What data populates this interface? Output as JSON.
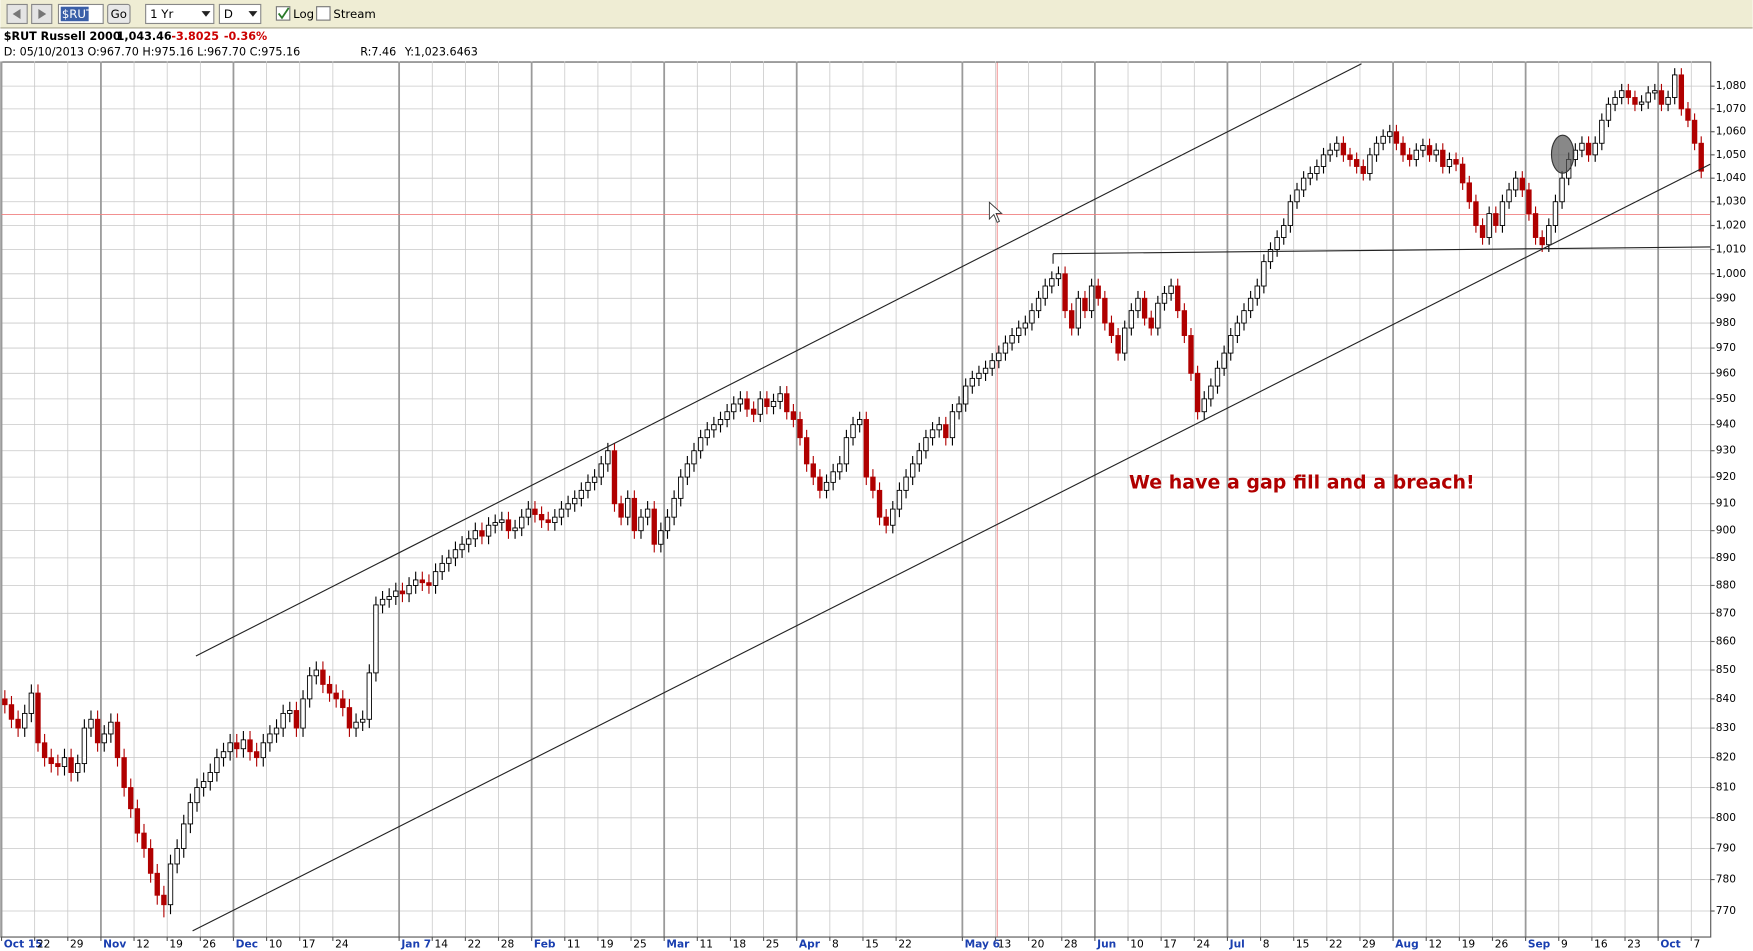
{
  "toolbar": {
    "symbol": "$RUT",
    "go": "Go",
    "period": "1 Yr",
    "frequency": "D",
    "log": "Log",
    "stream": "Stream"
  },
  "header": {
    "symbol_name": "$RUT Russell 2000",
    "last": "1,043.46",
    "change": "-3.8025",
    "change_pct": "-0.36%",
    "cursor_info": "D: 05/10/2013 O:967.70 H:975.16 L:967.70 C:975.16",
    "range": "R:7.46",
    "y_value": "Y:1,023.6463"
  },
  "chart_data": {
    "type": "candlestick",
    "log": true,
    "grid": true,
    "annotation": "We have a gap fill and a breach!",
    "up_color": "#000000",
    "down_color": "#b00000",
    "ylim": [
      762,
      1091
    ],
    "yticks": [
      770,
      780,
      790,
      800,
      810,
      820,
      830,
      840,
      850,
      860,
      870,
      880,
      890,
      900,
      910,
      920,
      930,
      940,
      950,
      960,
      970,
      980,
      990,
      {
        "value": 1000,
        "label": "1,000"
      },
      {
        "value": 1010,
        "label": "1,010"
      },
      {
        "value": 1020,
        "label": "1,020"
      },
      {
        "value": 1030,
        "label": "1,030"
      },
      {
        "value": 1040,
        "label": "1,040"
      },
      {
        "value": 1050,
        "label": "1,050"
      },
      {
        "value": 1060,
        "label": "1,060"
      },
      {
        "value": 1070,
        "label": "1,070"
      },
      {
        "value": 1080,
        "label": "1,080"
      }
    ],
    "categories": [
      "Oct 15",
      null,
      null,
      null,
      null,
      "22",
      null,
      null,
      null,
      null,
      "29",
      null,
      null,
      null,
      null,
      "Nov",
      null,
      null,
      null,
      null,
      "12",
      null,
      null,
      null,
      null,
      "19",
      null,
      null,
      null,
      null,
      "26",
      null,
      null,
      null,
      null,
      "Dec",
      null,
      null,
      null,
      null,
      "10",
      null,
      null,
      null,
      null,
      "17",
      null,
      null,
      null,
      null,
      "24",
      null,
      null,
      null,
      null,
      null,
      null,
      null,
      null,
      null,
      "Jan 7",
      null,
      null,
      null,
      null,
      "14",
      null,
      null,
      null,
      null,
      "22",
      null,
      null,
      null,
      null,
      "28",
      null,
      null,
      null,
      null,
      "Feb",
      null,
      null,
      null,
      null,
      "11",
      null,
      null,
      null,
      null,
      "19",
      null,
      null,
      null,
      null,
      "25",
      null,
      null,
      null,
      null,
      "Mar",
      null,
      null,
      null,
      null,
      "11",
      null,
      null,
      null,
      null,
      "18",
      null,
      null,
      null,
      null,
      "25",
      null,
      null,
      null,
      null,
      "Apr",
      null,
      null,
      null,
      null,
      "8",
      null,
      null,
      null,
      null,
      "15",
      null,
      null,
      null,
      null,
      "22",
      null,
      null,
      null,
      null,
      null,
      null,
      null,
      null,
      null,
      "May 6",
      null,
      null,
      null,
      null,
      "13",
      null,
      null,
      null,
      null,
      "20",
      null,
      null,
      null,
      null,
      "28",
      null,
      null,
      null,
      null,
      "Jun",
      null,
      null,
      null,
      null,
      "10",
      null,
      null,
      null,
      null,
      "17",
      null,
      null,
      null,
      null,
      "24",
      null,
      null,
      null,
      null,
      "Jul",
      null,
      null,
      null,
      null,
      "8",
      null,
      null,
      null,
      null,
      "15",
      null,
      null,
      null,
      null,
      "22",
      null,
      null,
      null,
      null,
      "29",
      null,
      null,
      null,
      null,
      "Aug",
      null,
      null,
      null,
      null,
      "12",
      null,
      null,
      null,
      null,
      "19",
      null,
      null,
      null,
      null,
      "26",
      null,
      null,
      null,
      null,
      "Sep",
      null,
      null,
      null,
      null,
      "9",
      null,
      null,
      null,
      null,
      "16",
      null,
      null,
      null,
      null,
      "23",
      null,
      null,
      null,
      null,
      "Oct",
      null,
      null,
      null,
      null,
      "7",
      null
    ],
    "open": [
      840,
      838,
      833,
      830,
      835,
      842,
      825,
      820,
      818,
      817,
      820,
      815,
      818,
      830,
      833,
      825,
      828,
      832,
      820,
      810,
      803,
      795,
      790,
      782,
      775,
      772,
      785,
      790,
      798,
      805,
      810,
      812,
      815,
      820,
      822,
      825,
      823,
      826,
      822,
      820,
      825,
      828,
      830,
      835,
      836,
      830,
      840,
      848,
      850,
      845,
      842,
      840,
      837,
      830,
      832,
      833,
      849,
      873,
      875,
      876,
      878,
      877,
      880,
      882,
      881,
      880,
      885,
      888,
      890,
      893,
      895,
      897,
      900,
      898,
      902,
      903,
      904,
      900,
      901,
      905,
      908,
      906,
      904,
      903,
      905,
      908,
      910,
      912,
      915,
      918,
      920,
      925,
      930,
      910,
      905,
      912,
      900,
      905,
      908,
      895,
      900,
      905,
      912,
      920,
      925,
      930,
      935,
      938,
      940,
      942,
      945,
      948,
      950,
      946,
      944,
      950,
      947,
      949,
      952,
      945,
      942,
      935,
      925,
      920,
      915,
      918,
      922,
      925,
      935,
      940,
      942,
      920,
      915,
      905,
      902,
      908,
      915,
      920,
      925,
      930,
      935,
      938,
      940,
      935,
      945,
      948,
      955,
      958,
      960,
      962,
      965,
      968,
      972,
      975,
      978,
      980,
      985,
      990,
      995,
      998,
      1000,
      985,
      978,
      990,
      985,
      995,
      990,
      980,
      975,
      968,
      978,
      985,
      990,
      982,
      978,
      988,
      992,
      995,
      985,
      975,
      960,
      945,
      950,
      955,
      962,
      968,
      975,
      980,
      985,
      990,
      995,
      1005,
      1010,
      1015,
      1020,
      1030,
      1035,
      1040,
      1042,
      1045,
      1050,
      1052,
      1055,
      1050,
      1048,
      1045,
      1042,
      1050,
      1055,
      1058,
      1060,
      1055,
      1050,
      1048,
      1052,
      1054,
      1050,
      1052,
      1045,
      1048,
      1046,
      1038,
      1030,
      1020,
      1015,
      1025,
      1020,
      1030,
      1035,
      1040,
      1035,
      1025,
      1015,
      1012,
      1020,
      1030,
      1040,
      1048,
      1052,
      1055,
      1050,
      1055,
      1065,
      1072,
      1075,
      1078,
      1075,
      1072,
      1073,
      1077,
      1078,
      1072,
      1075,
      1085,
      1070,
      1065,
      1055
    ],
    "high": [
      843,
      841,
      836,
      838,
      845,
      845,
      828,
      823,
      821,
      823,
      823,
      821,
      833,
      836,
      836,
      831,
      835,
      835,
      823,
      813,
      806,
      798,
      793,
      785,
      778,
      788,
      793,
      801,
      808,
      813,
      815,
      818,
      823,
      825,
      828,
      828,
      829,
      829,
      825,
      828,
      831,
      833,
      838,
      839,
      839,
      843,
      851,
      853,
      853,
      848,
      845,
      843,
      840,
      835,
      836,
      852,
      876,
      878,
      879,
      881,
      881,
      883,
      885,
      885,
      884,
      888,
      891,
      893,
      896,
      898,
      900,
      903,
      903,
      905,
      906,
      907,
      907,
      904,
      908,
      911,
      911,
      909,
      907,
      908,
      911,
      913,
      915,
      918,
      921,
      923,
      928,
      933,
      933,
      913,
      915,
      915,
      908,
      911,
      911,
      903,
      908,
      915,
      923,
      928,
      933,
      938,
      941,
      943,
      945,
      948,
      951,
      953,
      953,
      949,
      953,
      953,
      952,
      955,
      955,
      948,
      945,
      938,
      928,
      923,
      921,
      925,
      928,
      938,
      943,
      945,
      945,
      923,
      918,
      908,
      911,
      918,
      923,
      928,
      933,
      938,
      941,
      943,
      943,
      948,
      951,
      958,
      961,
      963,
      965,
      968,
      971,
      975,
      978,
      981,
      983,
      988,
      993,
      998,
      1001,
      1003,
      1003,
      988,
      993,
      993,
      998,
      998,
      993,
      983,
      978,
      981,
      988,
      993,
      993,
      985,
      991,
      995,
      998,
      998,
      988,
      978,
      963,
      953,
      958,
      965,
      971,
      978,
      983,
      988,
      993,
      998,
      1008,
      1013,
      1018,
      1023,
      1033,
      1038,
      1043,
      1045,
      1048,
      1053,
      1055,
      1058,
      1058,
      1053,
      1051,
      1048,
      1053,
      1058,
      1061,
      1063,
      1063,
      1058,
      1053,
      1055,
      1057,
      1057,
      1055,
      1055,
      1051,
      1051,
      1049,
      1041,
      1033,
      1023,
      1028,
      1028,
      1033,
      1038,
      1043,
      1043,
      1038,
      1028,
      1018,
      1023,
      1033,
      1043,
      1051,
      1055,
      1058,
      1058,
      1058,
      1068,
      1075,
      1078,
      1081,
      1081,
      1078,
      1076,
      1080,
      1081,
      1081,
      1078,
      1088,
      1088,
      1073,
      1068,
      1058
    ],
    "low": [
      835,
      830,
      827,
      827,
      832,
      822,
      817,
      815,
      814,
      814,
      812,
      812,
      815,
      827,
      822,
      822,
      825,
      817,
      807,
      800,
      792,
      787,
      779,
      772,
      768,
      769,
      782,
      787,
      795,
      802,
      807,
      809,
      812,
      817,
      819,
      820,
      820,
      819,
      817,
      817,
      822,
      825,
      827,
      832,
      827,
      827,
      837,
      845,
      842,
      839,
      837,
      834,
      827,
      827,
      829,
      830,
      846,
      870,
      872,
      873,
      874,
      874,
      877,
      878,
      877,
      877,
      882,
      885,
      887,
      890,
      892,
      894,
      895,
      895,
      899,
      900,
      897,
      897,
      898,
      902,
      903,
      901,
      900,
      900,
      902,
      905,
      907,
      909,
      912,
      915,
      917,
      922,
      907,
      902,
      902,
      897,
      897,
      902,
      892,
      892,
      897,
      902,
      909,
      917,
      922,
      927,
      932,
      935,
      937,
      939,
      942,
      945,
      943,
      941,
      941,
      944,
      944,
      946,
      942,
      939,
      932,
      922,
      917,
      912,
      912,
      915,
      919,
      922,
      932,
      937,
      917,
      912,
      902,
      899,
      899,
      905,
      912,
      917,
      922,
      927,
      932,
      935,
      932,
      932,
      942,
      945,
      952,
      955,
      957,
      959,
      962,
      965,
      969,
      972,
      975,
      977,
      982,
      987,
      992,
      995,
      982,
      975,
      975,
      982,
      982,
      987,
      977,
      972,
      965,
      965,
      975,
      982,
      979,
      975,
      975,
      985,
      989,
      982,
      972,
      957,
      942,
      942,
      947,
      952,
      959,
      965,
      972,
      977,
      982,
      987,
      992,
      1002,
      1007,
      1012,
      1017,
      1027,
      1032,
      1037,
      1039,
      1042,
      1047,
      1049,
      1047,
      1045,
      1042,
      1039,
      1039,
      1047,
      1052,
      1055,
      1052,
      1047,
      1045,
      1045,
      1049,
      1047,
      1047,
      1042,
      1042,
      1043,
      1035,
      1027,
      1017,
      1012,
      1012,
      1017,
      1017,
      1027,
      1032,
      1032,
      1022,
      1012,
      1009,
      1009,
      1017,
      1027,
      1037,
      1045,
      1049,
      1047,
      1047,
      1052,
      1062,
      1069,
      1072,
      1072,
      1069,
      1069,
      1070,
      1074,
      1069,
      1069,
      1072,
      1067,
      1062,
      1052,
      1040
    ],
    "close": [
      838,
      833,
      830,
      835,
      842,
      825,
      820,
      818,
      817,
      820,
      815,
      818,
      830,
      833,
      825,
      828,
      832,
      820,
      810,
      803,
      795,
      790,
      782,
      775,
      772,
      785,
      790,
      798,
      805,
      810,
      812,
      815,
      820,
      822,
      825,
      823,
      826,
      822,
      820,
      825,
      828,
      830,
      835,
      836,
      830,
      840,
      848,
      850,
      845,
      842,
      840,
      837,
      830,
      832,
      833,
      849,
      873,
      875,
      876,
      878,
      877,
      880,
      882,
      881,
      880,
      885,
      888,
      890,
      893,
      895,
      897,
      900,
      898,
      902,
      903,
      904,
      900,
      901,
      905,
      908,
      906,
      904,
      903,
      905,
      908,
      910,
      912,
      915,
      918,
      920,
      925,
      930,
      910,
      905,
      912,
      900,
      905,
      908,
      895,
      900,
      905,
      912,
      920,
      925,
      930,
      935,
      938,
      940,
      942,
      945,
      948,
      950,
      946,
      944,
      950,
      947,
      949,
      952,
      945,
      942,
      935,
      925,
      920,
      915,
      918,
      922,
      925,
      935,
      940,
      942,
      920,
      915,
      905,
      902,
      908,
      915,
      920,
      925,
      930,
      935,
      938,
      940,
      935,
      945,
      948,
      955,
      958,
      960,
      962,
      965,
      968,
      972,
      975,
      978,
      980,
      985,
      990,
      995,
      998,
      1000,
      985,
      978,
      990,
      985,
      995,
      990,
      980,
      975,
      968,
      978,
      985,
      990,
      982,
      978,
      988,
      992,
      995,
      985,
      975,
      960,
      945,
      950,
      955,
      962,
      968,
      975,
      980,
      985,
      990,
      995,
      1005,
      1010,
      1015,
      1020,
      1030,
      1035,
      1040,
      1042,
      1045,
      1050,
      1052,
      1055,
      1050,
      1048,
      1045,
      1042,
      1050,
      1055,
      1058,
      1060,
      1055,
      1050,
      1048,
      1052,
      1054,
      1050,
      1052,
      1045,
      1048,
      1046,
      1038,
      1030,
      1020,
      1015,
      1025,
      1020,
      1030,
      1035,
      1040,
      1035,
      1025,
      1015,
      1012,
      1020,
      1030,
      1040,
      1048,
      1052,
      1055,
      1050,
      1055,
      1065,
      1072,
      1075,
      1078,
      1075,
      1072,
      1073,
      1077,
      1078,
      1072,
      1075,
      1085,
      1070,
      1065,
      1055,
      1043
    ]
  }
}
